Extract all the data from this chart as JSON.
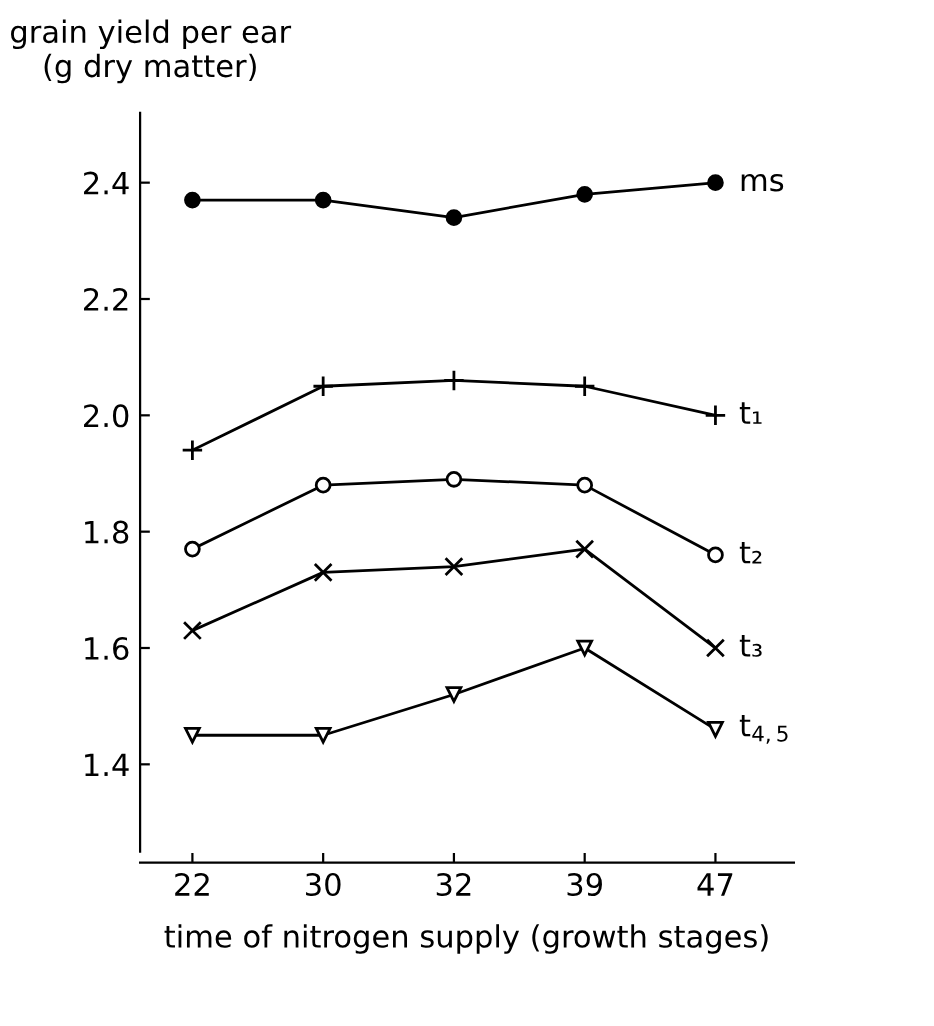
{
  "chart_data": {
    "type": "line",
    "ylabel": "grain yield per ear\n(g dry matter)",
    "xlabel": "time of nitrogen supply (growth stages)",
    "categories": [
      "22",
      "30",
      "32",
      "39",
      "47"
    ],
    "series": [
      {
        "name": "ms",
        "color": "#000000",
        "marker": "circle",
        "values": [
          2.37,
          2.37,
          2.34,
          2.38,
          2.4
        ]
      },
      {
        "name": "t₁",
        "color": "#000000",
        "marker": "plus",
        "values": [
          1.94,
          2.05,
          2.06,
          2.05,
          2.0
        ]
      },
      {
        "name": "t₂",
        "color": "#000000",
        "marker": "circle_open",
        "values": [
          1.77,
          1.88,
          1.89,
          1.88,
          1.76
        ]
      },
      {
        "name": "t₃",
        "color": "#000000",
        "marker": "cross",
        "values": [
          1.63,
          1.73,
          1.74,
          1.77,
          1.6
        ]
      },
      {
        "name": "t$_{4,5}$",
        "color": "#000000",
        "marker": "triangle_down_open",
        "values": [
          1.45,
          1.45,
          1.52,
          1.6,
          1.46
        ]
      }
    ],
    "ylim": [
      1.25,
      2.52
    ],
    "yticks": [
      1.4,
      1.6,
      1.8,
      {
        "value": 2.0,
        "label": "2.0"
      },
      2.2,
      2.4
    ],
    "grid": false,
    "legend": false,
    "line_style": "solid"
  }
}
